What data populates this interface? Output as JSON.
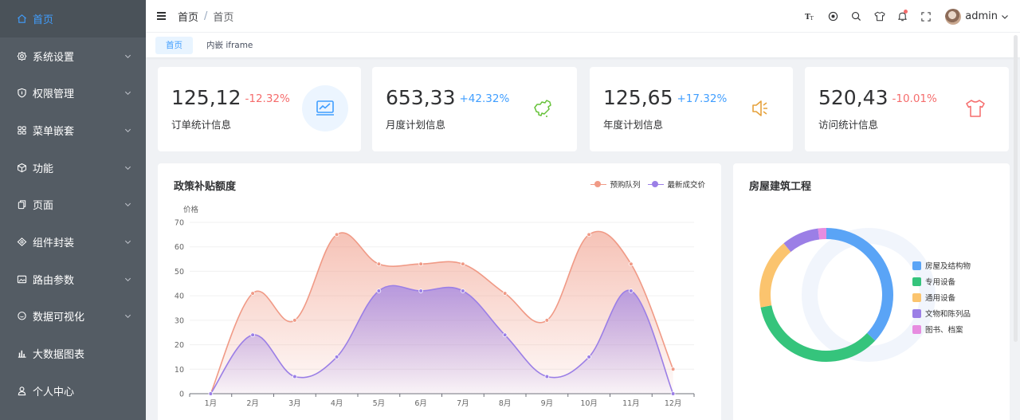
{
  "sidebar": {
    "items": [
      {
        "label": "首页",
        "icon": "home-icon",
        "active": true,
        "arrow": false
      },
      {
        "label": "系统设置",
        "icon": "setting-icon",
        "active": false,
        "arrow": true
      },
      {
        "label": "权限管理",
        "icon": "shield-icon",
        "active": false,
        "arrow": true
      },
      {
        "label": "菜单嵌套",
        "icon": "grid-icon",
        "active": false,
        "arrow": true
      },
      {
        "label": "功能",
        "icon": "box-icon",
        "active": false,
        "arrow": true
      },
      {
        "label": "页面",
        "icon": "copy-icon",
        "active": false,
        "arrow": true
      },
      {
        "label": "组件封装",
        "icon": "layers-icon",
        "active": false,
        "arrow": true
      },
      {
        "label": "路由参数",
        "icon": "image-icon",
        "active": false,
        "arrow": true
      },
      {
        "label": "数据可视化",
        "icon": "chat-icon",
        "active": false,
        "arrow": true
      },
      {
        "label": "大数据图表",
        "icon": "bar-chart-icon",
        "active": false,
        "arrow": false
      },
      {
        "label": "个人中心",
        "icon": "user-icon",
        "active": false,
        "arrow": false
      }
    ]
  },
  "header": {
    "breadcrumb": [
      "首页",
      "首页"
    ],
    "separator": "/",
    "tools": [
      "font-size-icon",
      "theme-icon",
      "search-icon",
      "shirt-icon",
      "bell-icon",
      "fullscreen-icon"
    ],
    "user_name": "admin"
  },
  "tags": [
    {
      "label": "首页",
      "active": true
    },
    {
      "label": "内嵌 iframe",
      "active": false
    }
  ],
  "stats": [
    {
      "value": "125,12",
      "change": "-12.32%",
      "change_color": "#f56c6c",
      "label": "订单统计信息",
      "icon": "monitor-chart-icon",
      "icon_color": "#409eff",
      "icon_bg": "#ecf5ff"
    },
    {
      "value": "653,33",
      "change": "+42.32%",
      "change_color": "#409eff",
      "label": "月度计划信息",
      "icon": "china-map-icon",
      "icon_color": "#67c23a",
      "icon_bg": "#ffffff"
    },
    {
      "value": "125,65",
      "change": "+17.32%",
      "change_color": "#409eff",
      "label": "年度计划信息",
      "icon": "speaker-icon",
      "icon_color": "#e6a23c",
      "icon_bg": "#ffffff"
    },
    {
      "value": "520,43",
      "change": "-10.01%",
      "change_color": "#f56c6c",
      "label": "访问统计信息",
      "icon": "shirt-icon",
      "icon_color": "#f56c6c",
      "icon_bg": "#ffffff"
    }
  ],
  "line_panel": {
    "title": "政策补贴额度"
  },
  "pie_panel": {
    "title": "房屋建筑工程"
  },
  "chart_data": [
    {
      "type": "area",
      "title": "政策补贴额度",
      "ylabel": "价格",
      "categories": [
        "1月",
        "2月",
        "3月",
        "4月",
        "5月",
        "6月",
        "7月",
        "8月",
        "9月",
        "10月",
        "11月",
        "12月"
      ],
      "yticks": [
        "0",
        "10",
        "20",
        "30",
        "40",
        "50",
        "60",
        "70"
      ],
      "ylim": [
        0,
        70
      ],
      "legend_position": "top-right",
      "series": [
        {
          "name": "预购队列",
          "color": "#f09a86",
          "values": [
            0,
            41,
            30,
            65,
            53,
            53,
            53,
            41,
            30,
            65,
            53,
            10
          ]
        },
        {
          "name": "最新成交价",
          "color": "#9b7fe6",
          "values": [
            0,
            24,
            7,
            15,
            42,
            42,
            42,
            24,
            7,
            15,
            42,
            0
          ]
        }
      ]
    },
    {
      "type": "pie",
      "title": "房屋建筑工程",
      "legend_position": "right",
      "slices": [
        {
          "name": "房屋及结构物",
          "value": 37,
          "color": "#5aa4f6"
        },
        {
          "name": "专用设备",
          "value": 35,
          "color": "#35c47c"
        },
        {
          "name": "通用设备",
          "value": 17,
          "color": "#fbc46e"
        },
        {
          "name": "文物和陈列品",
          "value": 9,
          "color": "#9b7fe6"
        },
        {
          "name": "图书、档案",
          "value": 2,
          "color": "#e78ce0"
        }
      ]
    }
  ]
}
